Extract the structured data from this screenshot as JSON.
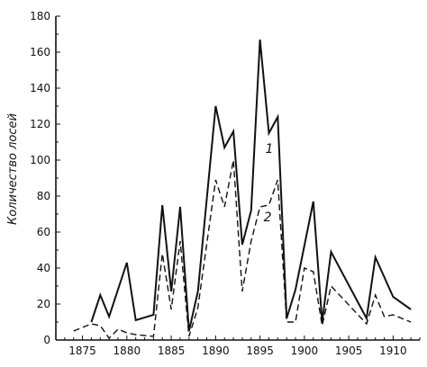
{
  "chart_data": {
    "type": "line",
    "ylabel": "Количество лосей",
    "xlabel": "",
    "xlim": [
      1872,
      1913
    ],
    "ylim": [
      0,
      180
    ],
    "x_ticks": [
      1875,
      1880,
      1885,
      1890,
      1895,
      1900,
      1905,
      1910
    ],
    "y_ticks": [
      0,
      20,
      40,
      60,
      80,
      100,
      120,
      140,
      160,
      180
    ],
    "grid": false,
    "series": [
      {
        "name": "1",
        "style": "solid",
        "x": [
          1876,
          1877,
          1878,
          1880,
          1881,
          1883,
          1884,
          1885,
          1886,
          1887,
          1888,
          1890,
          1891,
          1892,
          1893,
          1894,
          1895,
          1896,
          1897,
          1898,
          1899,
          1901,
          1902,
          1903,
          1907,
          1908,
          1910,
          1912
        ],
        "values": [
          10,
          25,
          13,
          43,
          11,
          14,
          75,
          27,
          74,
          5,
          27,
          130,
          107,
          116,
          53,
          72,
          167,
          115,
          124,
          12,
          28,
          77,
          10,
          49,
          12,
          46,
          24,
          17
        ]
      },
      {
        "name": "2",
        "style": "dashed",
        "x": [
          1874,
          1876,
          1877,
          1878,
          1879,
          1880,
          1881,
          1883,
          1884,
          1885,
          1886,
          1887,
          1888,
          1890,
          1891,
          1892,
          1893,
          1894,
          1895,
          1896,
          1897,
          1898,
          1899,
          1900,
          1901,
          1902,
          1903,
          1907,
          1908,
          1909,
          1910,
          1912
        ],
        "values": [
          5,
          9,
          8,
          1,
          6,
          4,
          3,
          2,
          48,
          17,
          55,
          2,
          18,
          89,
          74,
          100,
          27,
          55,
          74,
          75,
          89,
          10,
          10,
          40,
          38,
          8,
          30,
          9,
          25,
          13,
          14,
          10
        ]
      }
    ]
  }
}
